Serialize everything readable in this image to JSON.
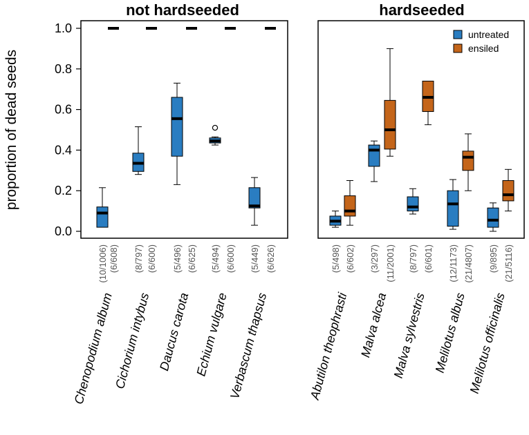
{
  "chart_data": {
    "type": "boxplot",
    "ylabel": "proportion of dead seeds",
    "ylim": [
      0,
      1
    ],
    "yticks": [
      "0.0",
      "0.2",
      "0.4",
      "0.6",
      "0.8",
      "1.0"
    ],
    "legend": {
      "position": "top-right",
      "entries": [
        {
          "name": "untreated",
          "color": "#2A7DC1"
        },
        {
          "name": "ensiled",
          "color": "#C4651A"
        }
      ]
    },
    "panels": [
      {
        "title": "not hardseeded",
        "groups": [
          {
            "species": "Chenopodium album",
            "boxes": [
              {
                "treatment": "untreated",
                "n": "(10/1006)",
                "min": 0.02,
                "q1": 0.02,
                "median": 0.09,
                "q3": 0.12,
                "max": 0.215,
                "outliers": []
              },
              {
                "treatment": "ensiled",
                "n": "(6/608)",
                "min": 1.0,
                "q1": 1.0,
                "median": 1.0,
                "q3": 1.0,
                "max": 1.0,
                "outliers": []
              }
            ]
          },
          {
            "species": "Cichorium intybus",
            "boxes": [
              {
                "treatment": "untreated",
                "n": "(8/797)",
                "min": 0.28,
                "q1": 0.295,
                "median": 0.335,
                "q3": 0.385,
                "max": 0.515,
                "outliers": []
              },
              {
                "treatment": "ensiled",
                "n": "(6/600)",
                "min": 1.0,
                "q1": 1.0,
                "median": 1.0,
                "q3": 1.0,
                "max": 1.0,
                "outliers": []
              }
            ]
          },
          {
            "species": "Daucus carota",
            "boxes": [
              {
                "treatment": "untreated",
                "n": "(5/496)",
                "min": 0.23,
                "q1": 0.37,
                "median": 0.555,
                "q3": 0.66,
                "max": 0.73,
                "outliers": []
              },
              {
                "treatment": "ensiled",
                "n": "(6/625)",
                "min": 1.0,
                "q1": 1.0,
                "median": 1.0,
                "q3": 1.0,
                "max": 1.0,
                "outliers": []
              }
            ]
          },
          {
            "species": "Echium vulgare",
            "boxes": [
              {
                "treatment": "untreated",
                "n": "(5/494)",
                "min": 0.425,
                "q1": 0.435,
                "median": 0.445,
                "q3": 0.46,
                "max": 0.465,
                "outliers": [
                  0.51
                ]
              },
              {
                "treatment": "ensiled",
                "n": "(6/600)",
                "min": 1.0,
                "q1": 1.0,
                "median": 1.0,
                "q3": 1.0,
                "max": 1.0,
                "outliers": []
              }
            ]
          },
          {
            "species": "Verbascum thapsus",
            "boxes": [
              {
                "treatment": "untreated",
                "n": "(5/449)",
                "min": 0.03,
                "q1": 0.115,
                "median": 0.125,
                "q3": 0.215,
                "max": 0.265,
                "outliers": []
              },
              {
                "treatment": "ensiled",
                "n": "(6/626)",
                "min": 1.0,
                "q1": 1.0,
                "median": 1.0,
                "q3": 1.0,
                "max": 1.0,
                "outliers": []
              }
            ]
          }
        ]
      },
      {
        "title": "hardseeded",
        "groups": [
          {
            "species": "Abutilon theophrasti",
            "boxes": [
              {
                "treatment": "untreated",
                "n": "(5/498)",
                "min": 0.02,
                "q1": 0.03,
                "median": 0.05,
                "q3": 0.075,
                "max": 0.1,
                "outliers": []
              },
              {
                "treatment": "ensiled",
                "n": "(6/602)",
                "min": 0.03,
                "q1": 0.075,
                "median": 0.1,
                "q3": 0.175,
                "max": 0.25,
                "outliers": []
              }
            ]
          },
          {
            "species": "Malva alcea",
            "boxes": [
              {
                "treatment": "untreated",
                "n": "(3/297)",
                "min": 0.245,
                "q1": 0.32,
                "median": 0.4,
                "q3": 0.425,
                "max": 0.445,
                "outliers": []
              },
              {
                "treatment": "ensiled",
                "n": "(11/2001)",
                "min": 0.37,
                "q1": 0.405,
                "median": 0.5,
                "q3": 0.645,
                "max": 0.9,
                "outliers": []
              }
            ]
          },
          {
            "species": "Malva sylvestris",
            "boxes": [
              {
                "treatment": "untreated",
                "n": "(8/797)",
                "min": 0.085,
                "q1": 0.1,
                "median": 0.12,
                "q3": 0.17,
                "max": 0.21,
                "outliers": []
              },
              {
                "treatment": "ensiled",
                "n": "(6/601)",
                "min": 0.525,
                "q1": 0.59,
                "median": 0.66,
                "q3": 0.74,
                "max": 0.74,
                "outliers": []
              }
            ]
          },
          {
            "species": "Melilotus albus",
            "boxes": [
              {
                "treatment": "untreated",
                "n": "(12/1173)",
                "min": 0.01,
                "q1": 0.025,
                "median": 0.135,
                "q3": 0.2,
                "max": 0.255,
                "outliers": []
              },
              {
                "treatment": "ensiled",
                "n": "(21/4807)",
                "min": 0.2,
                "q1": 0.3,
                "median": 0.365,
                "q3": 0.395,
                "max": 0.48,
                "outliers": []
              }
            ]
          },
          {
            "species": "Melilotus officinalis",
            "boxes": [
              {
                "treatment": "untreated",
                "n": "(9/895)",
                "min": 0.0,
                "q1": 0.02,
                "median": 0.055,
                "q3": 0.115,
                "max": 0.14,
                "outliers": []
              },
              {
                "treatment": "ensiled",
                "n": "(21/5116)",
                "min": 0.1,
                "q1": 0.15,
                "median": 0.18,
                "q3": 0.25,
                "max": 0.305,
                "outliers": []
              }
            ]
          }
        ]
      }
    ]
  }
}
